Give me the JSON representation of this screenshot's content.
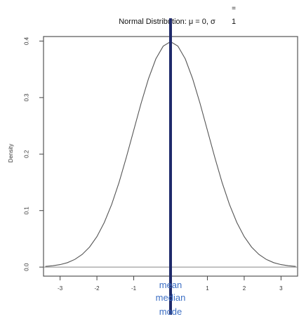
{
  "chart_data": {
    "type": "line",
    "title": "Normal Distribution: μ = 0, σ = 1",
    "title_main": "Normal Distribution: μ = 0, σ ",
    "title_sigma_value": "1",
    "title_equals": "=",
    "xlabel": "",
    "ylabel": "Density",
    "xlim": [
      -3.45,
      3.45
    ],
    "ylim": [
      -0.016,
      0.408
    ],
    "x_ticks": [
      -3,
      -2,
      -1,
      0,
      1,
      2,
      3
    ],
    "x_tick_labels": [
      "-3",
      "-2",
      "-1",
      "0",
      "1",
      "2",
      "3"
    ],
    "y_ticks": [
      0.0,
      0.1,
      0.2,
      0.3,
      0.4
    ],
    "y_tick_labels": [
      "0.0",
      "0.1",
      "0.2",
      "0.3",
      "0.4"
    ],
    "series": [
      {
        "x": [
          -3.4,
          -3.2,
          -3.0,
          -2.8,
          -2.6,
          -2.4,
          -2.2,
          -2.0,
          -1.8,
          -1.6,
          -1.4,
          -1.2,
          -1.0,
          -0.8,
          -0.6,
          -0.4,
          -0.2,
          0.0,
          0.2,
          0.4,
          0.6,
          0.8,
          1.0,
          1.2,
          1.4,
          1.6,
          1.8,
          2.0,
          2.2,
          2.4,
          2.6,
          2.8,
          3.0,
          3.2,
          3.4
        ],
        "values": [
          0.0012,
          0.0024,
          0.0044,
          0.0079,
          0.0136,
          0.0224,
          0.0355,
          0.054,
          0.079,
          0.1109,
          0.1497,
          0.1942,
          0.242,
          0.2897,
          0.3332,
          0.3683,
          0.391,
          0.3989,
          0.391,
          0.3683,
          0.3332,
          0.2897,
          0.242,
          0.1942,
          0.1497,
          0.1109,
          0.079,
          0.054,
          0.0355,
          0.0224,
          0.0136,
          0.0079,
          0.0044,
          0.0024,
          0.0012
        ]
      }
    ],
    "reference_line": {
      "x": 0
    },
    "annotations": [
      "mean",
      "median",
      "mode"
    ],
    "colors": {
      "curve": "#555555",
      "reference_line": "#1f2a6b",
      "annotation": "#3d6fc4",
      "axis": "#444444"
    },
    "grid": false
  }
}
